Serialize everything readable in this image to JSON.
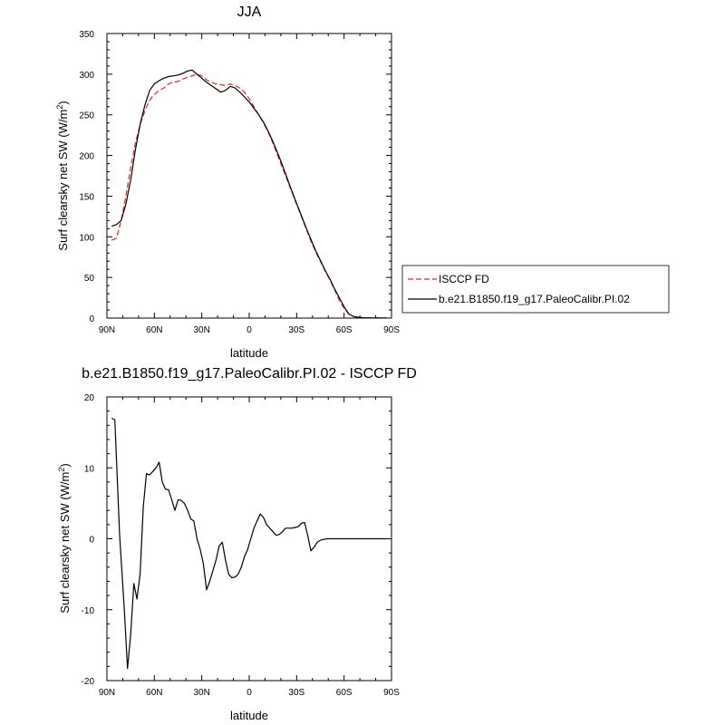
{
  "chart_data": [
    {
      "type": "line",
      "title": "JJA",
      "xlabel": "latitude",
      "ylabel_main": "Surf clearsky net SW (W/m",
      "ylabel_sup": "2",
      "ylabel_tail": ")",
      "xlim": [
        90,
        -90
      ],
      "ylim": [
        0,
        350
      ],
      "x_ticks": [
        90,
        60,
        30,
        0,
        -30,
        -60,
        -90
      ],
      "x_tick_labels": [
        "90N",
        "60N",
        "30N",
        "0",
        "30S",
        "60S",
        "90S"
      ],
      "y_ticks": [
        0,
        50,
        100,
        150,
        200,
        250,
        300,
        350
      ],
      "y_tick_labels": [
        "0",
        "50",
        "100",
        "150",
        "200",
        "250",
        "300",
        "350"
      ],
      "grid": false,
      "legend_position": "right",
      "series": [
        {
          "name": "ISCCP FD",
          "color": "#e8221b",
          "dash": "dashed",
          "x": [
            87,
            84,
            81,
            78,
            75,
            72,
            69,
            66,
            63,
            60,
            57,
            54,
            51,
            48,
            45,
            42,
            39,
            36,
            33,
            30,
            27,
            24,
            21,
            18,
            15,
            12,
            9,
            6,
            3,
            0,
            -3,
            -6,
            -9,
            -12,
            -15,
            -18,
            -21,
            -24,
            -27,
            -30,
            -33,
            -36,
            -39,
            -42,
            -45,
            -48,
            -51,
            -54,
            -57,
            -60,
            -63,
            -66,
            -69,
            -72,
            -75,
            -78,
            -81,
            -84,
            -87
          ],
          "y": [
            96,
            98,
            120,
            150,
            185,
            215,
            238,
            255,
            268,
            275,
            280,
            283,
            288,
            290,
            291,
            294,
            296,
            298,
            300,
            298,
            293,
            290,
            288,
            287,
            286,
            288,
            286,
            283,
            278,
            270,
            260,
            250,
            240,
            229,
            215,
            200,
            185,
            170,
            155,
            140,
            125,
            110,
            95,
            82,
            70,
            58,
            47,
            35,
            22,
            12,
            5,
            2,
            1,
            0.5,
            0.3,
            0.2,
            0.1,
            0.1,
            0.1
          ]
        },
        {
          "name": "b.e21.B1850.f19_g17.PaleoCalibr.PI.02",
          "color": "#000000",
          "dash": "solid",
          "x": [
            87,
            84,
            81,
            78,
            75,
            72,
            69,
            66,
            63,
            60,
            57,
            54,
            51,
            48,
            45,
            42,
            39,
            36,
            33,
            30,
            27,
            24,
            21,
            18,
            15,
            12,
            9,
            6,
            3,
            0,
            -3,
            -6,
            -9,
            -12,
            -15,
            -18,
            -21,
            -24,
            -27,
            -30,
            -33,
            -36,
            -39,
            -42,
            -45,
            -48,
            -51,
            -54,
            -57,
            -60,
            -63,
            -66,
            -69,
            -72,
            -75,
            -78,
            -81,
            -84,
            -87
          ],
          "y": [
            113,
            115,
            120,
            140,
            170,
            207,
            238,
            262,
            280,
            288,
            292,
            295,
            297,
            298,
            299,
            301,
            304,
            305,
            300,
            295,
            290,
            286,
            282,
            278,
            280,
            285,
            283,
            278,
            272,
            266,
            258,
            250,
            241,
            230,
            217,
            203,
            188,
            172,
            156,
            141,
            126,
            111,
            97,
            83,
            71,
            59,
            48,
            36,
            25,
            14,
            5,
            2,
            1,
            0.5,
            0.3,
            0.2,
            0.1,
            0.1,
            0.1
          ]
        }
      ]
    },
    {
      "type": "line",
      "title": "b.e21.B1850.f19_g17.PaleoCalibr.PI.02 - ISCCP FD",
      "xlabel": "latitude",
      "ylabel_main": "Surf clearsky net SW (W/m",
      "ylabel_sup": "2",
      "ylabel_tail": ")",
      "xlim": [
        90,
        -90
      ],
      "ylim": [
        -20,
        20
      ],
      "x_ticks": [
        90,
        60,
        30,
        0,
        -30,
        -60,
        -90
      ],
      "x_tick_labels": [
        "90N",
        "60N",
        "30N",
        "0",
        "30S",
        "60S",
        "90S"
      ],
      "y_ticks": [
        -20,
        -10,
        0,
        10,
        20
      ],
      "y_tick_labels": [
        "-20",
        "-10",
        "0",
        "10",
        "20"
      ],
      "grid": false,
      "series": [
        {
          "color": "#000000",
          "dash": "solid",
          "x": [
            87,
            85,
            82,
            79,
            77,
            75,
            73,
            71,
            69,
            67,
            65,
            63,
            61,
            59,
            57,
            55,
            53,
            51,
            49,
            47,
            45,
            43,
            41,
            39,
            37,
            35,
            33,
            31,
            29,
            27,
            25,
            23,
            21,
            19,
            17,
            15,
            13,
            11,
            9,
            7,
            5,
            3,
            1,
            -1,
            -3,
            -5,
            -7,
            -9,
            -11,
            -13,
            -15,
            -17,
            -19,
            -21,
            -23,
            -25,
            -27,
            -29,
            -31,
            -33,
            -35,
            -37,
            -39,
            -41,
            -43,
            -45,
            -47,
            -49,
            -51,
            -53,
            -55,
            -57,
            -59,
            -61,
            -63,
            -65,
            -67,
            -69,
            -71,
            -73,
            -75,
            -77,
            -79,
            -81,
            -83,
            -85,
            -87
          ],
          "y": [
            17,
            16.8,
            0.5,
            -10,
            -18.3,
            -13.5,
            -6.3,
            -8.5,
            -5,
            4.5,
            9.2,
            9,
            9.5,
            10,
            10.8,
            8,
            7,
            6.9,
            5.5,
            4,
            5.5,
            5.4,
            5,
            4,
            2.8,
            2.5,
            0,
            -1.5,
            -3.5,
            -7.2,
            -6,
            -4.5,
            -3,
            -1,
            -0.5,
            -3,
            -5,
            -5.5,
            -5.4,
            -5,
            -4,
            -2.5,
            -1.5,
            0,
            1.5,
            2.5,
            3.5,
            3,
            2,
            1.5,
            1,
            0.5,
            0.6,
            1,
            1.5,
            1.5,
            1.5,
            1.6,
            1.7,
            2.2,
            2.3,
            0.5,
            -1.7,
            -1.2,
            -0.5,
            -0.2,
            -0.1,
            0,
            0,
            0,
            0,
            0,
            0,
            0,
            0,
            0,
            0,
            0,
            0,
            0,
            0,
            0,
            0,
            0,
            0,
            0,
            0
          ]
        }
      ]
    }
  ]
}
